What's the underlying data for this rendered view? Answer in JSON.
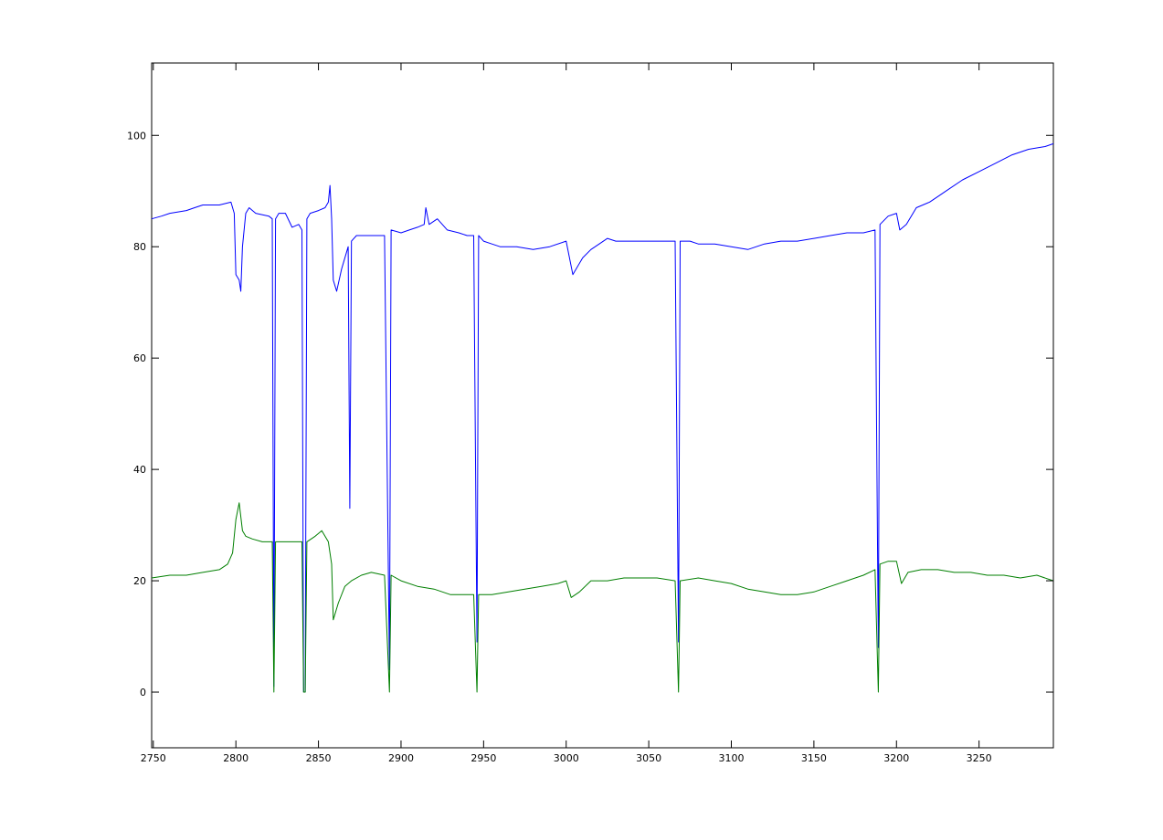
{
  "chart_data": {
    "type": "line",
    "title": "",
    "xlabel": "",
    "ylabel": "",
    "xlim": [
      2749,
      3295
    ],
    "ylim": [
      -10,
      113
    ],
    "xticks": [
      2750,
      2800,
      2850,
      2900,
      2950,
      3000,
      3050,
      3100,
      3150,
      3200,
      3250
    ],
    "yticks": [
      0,
      20,
      40,
      60,
      80,
      100
    ],
    "xtick_labels": [
      "2750",
      "2800",
      "2850",
      "2900",
      "2950",
      "3000",
      "3050",
      "3100",
      "3150",
      "3200",
      "3250"
    ],
    "ytick_labels": [
      "0",
      "20",
      "40",
      "60",
      "80",
      "100"
    ],
    "grid": false,
    "legend": "none",
    "series": [
      {
        "color": "#0000ff",
        "points": [
          [
            2749,
            85
          ],
          [
            2755,
            85.5
          ],
          [
            2760,
            86
          ],
          [
            2770,
            86.5
          ],
          [
            2775,
            87
          ],
          [
            2780,
            87.5
          ],
          [
            2790,
            87.5
          ],
          [
            2797,
            88
          ],
          [
            2799,
            86
          ],
          [
            2800,
            75
          ],
          [
            2802,
            74
          ],
          [
            2803,
            72
          ],
          [
            2804,
            80
          ],
          [
            2806,
            86
          ],
          [
            2808,
            87
          ],
          [
            2812,
            86
          ],
          [
            2820,
            85.5
          ],
          [
            2822,
            85
          ],
          [
            2823,
            1
          ],
          [
            2824,
            85
          ],
          [
            2826,
            86
          ],
          [
            2830,
            86
          ],
          [
            2834,
            83.5
          ],
          [
            2838,
            84
          ],
          [
            2840,
            83
          ],
          [
            2841,
            0
          ],
          [
            2842,
            0
          ],
          [
            2843,
            85
          ],
          [
            2845,
            86
          ],
          [
            2850,
            86.5
          ],
          [
            2854,
            87
          ],
          [
            2856,
            88
          ],
          [
            2857,
            91
          ],
          [
            2858,
            85
          ],
          [
            2859,
            74
          ],
          [
            2861,
            72
          ],
          [
            2864,
            76
          ],
          [
            2867,
            79
          ],
          [
            2868,
            80
          ],
          [
            2869,
            33
          ],
          [
            2870,
            81
          ],
          [
            2873,
            82
          ],
          [
            2880,
            82
          ],
          [
            2886,
            82
          ],
          [
            2890,
            82
          ],
          [
            2893,
            4
          ],
          [
            2894,
            83
          ],
          [
            2900,
            82.5
          ],
          [
            2905,
            83
          ],
          [
            2910,
            83.5
          ],
          [
            2914,
            84
          ],
          [
            2915,
            87
          ],
          [
            2917,
            84
          ],
          [
            2922,
            85
          ],
          [
            2928,
            83
          ],
          [
            2935,
            82.5
          ],
          [
            2940,
            82
          ],
          [
            2944,
            82
          ],
          [
            2946,
            9
          ],
          [
            2947,
            82
          ],
          [
            2950,
            81
          ],
          [
            2955,
            80.5
          ],
          [
            2960,
            80
          ],
          [
            2970,
            80
          ],
          [
            2980,
            79.5
          ],
          [
            2990,
            80
          ],
          [
            3000,
            81
          ],
          [
            3004,
            75
          ],
          [
            3010,
            78
          ],
          [
            3015,
            79.5
          ],
          [
            3020,
            80.5
          ],
          [
            3025,
            81.5
          ],
          [
            3030,
            81
          ],
          [
            3040,
            81
          ],
          [
            3050,
            81
          ],
          [
            3060,
            81
          ],
          [
            3066,
            81
          ],
          [
            3068,
            9
          ],
          [
            3069,
            81
          ],
          [
            3075,
            81
          ],
          [
            3080,
            80.5
          ],
          [
            3090,
            80.5
          ],
          [
            3100,
            80
          ],
          [
            3110,
            79.5
          ],
          [
            3120,
            80.5
          ],
          [
            3130,
            81
          ],
          [
            3140,
            81
          ],
          [
            3150,
            81.5
          ],
          [
            3160,
            82
          ],
          [
            3170,
            82.5
          ],
          [
            3180,
            82.5
          ],
          [
            3187,
            83
          ],
          [
            3189,
            8
          ],
          [
            3190,
            84
          ],
          [
            3195,
            85.5
          ],
          [
            3200,
            86
          ],
          [
            3202,
            83
          ],
          [
            3206,
            84
          ],
          [
            3212,
            87
          ],
          [
            3220,
            88
          ],
          [
            3225,
            89
          ],
          [
            3230,
            90
          ],
          [
            3240,
            92
          ],
          [
            3250,
            93.5
          ],
          [
            3260,
            95
          ],
          [
            3270,
            96.5
          ],
          [
            3280,
            97.5
          ],
          [
            3290,
            98
          ],
          [
            3295,
            98.5
          ]
        ]
      },
      {
        "color": "#007f00",
        "points": [
          [
            2749,
            20.5
          ],
          [
            2760,
            21
          ],
          [
            2770,
            21
          ],
          [
            2780,
            21.5
          ],
          [
            2790,
            22
          ],
          [
            2795,
            23
          ],
          [
            2798,
            25
          ],
          [
            2800,
            31
          ],
          [
            2802,
            34
          ],
          [
            2804,
            29
          ],
          [
            2806,
            28
          ],
          [
            2810,
            27.5
          ],
          [
            2816,
            27
          ],
          [
            2822,
            27
          ],
          [
            2823,
            0
          ],
          [
            2824,
            27
          ],
          [
            2830,
            27
          ],
          [
            2836,
            27
          ],
          [
            2840,
            27
          ],
          [
            2841,
            0
          ],
          [
            2842,
            0
          ],
          [
            2843,
            27
          ],
          [
            2848,
            28
          ],
          [
            2852,
            29
          ],
          [
            2856,
            27
          ],
          [
            2858,
            23
          ],
          [
            2859,
            13
          ],
          [
            2862,
            16
          ],
          [
            2866,
            19
          ],
          [
            2870,
            20
          ],
          [
            2876,
            21
          ],
          [
            2882,
            21.5
          ],
          [
            2890,
            21
          ],
          [
            2893,
            0
          ],
          [
            2894,
            21
          ],
          [
            2900,
            20
          ],
          [
            2910,
            19
          ],
          [
            2920,
            18.5
          ],
          [
            2930,
            17.5
          ],
          [
            2940,
            17.5
          ],
          [
            2944,
            17.5
          ],
          [
            2946,
            0
          ],
          [
            2947,
            17.5
          ],
          [
            2955,
            17.5
          ],
          [
            2965,
            18
          ],
          [
            2975,
            18.5
          ],
          [
            2985,
            19
          ],
          [
            2995,
            19.5
          ],
          [
            3000,
            20
          ],
          [
            3003,
            17
          ],
          [
            3008,
            18
          ],
          [
            3015,
            20
          ],
          [
            3025,
            20
          ],
          [
            3035,
            20.5
          ],
          [
            3045,
            20.5
          ],
          [
            3055,
            20.5
          ],
          [
            3066,
            20
          ],
          [
            3068,
            0
          ],
          [
            3069,
            20
          ],
          [
            3080,
            20.5
          ],
          [
            3090,
            20
          ],
          [
            3100,
            19.5
          ],
          [
            3110,
            18.5
          ],
          [
            3120,
            18
          ],
          [
            3130,
            17.5
          ],
          [
            3140,
            17.5
          ],
          [
            3150,
            18
          ],
          [
            3160,
            19
          ],
          [
            3170,
            20
          ],
          [
            3180,
            21
          ],
          [
            3187,
            22
          ],
          [
            3189,
            0
          ],
          [
            3190,
            23
          ],
          [
            3195,
            23.5
          ],
          [
            3200,
            23.5
          ],
          [
            3203,
            19.5
          ],
          [
            3207,
            21.5
          ],
          [
            3215,
            22
          ],
          [
            3225,
            22
          ],
          [
            3235,
            21.5
          ],
          [
            3245,
            21.5
          ],
          [
            3255,
            21
          ],
          [
            3265,
            21
          ],
          [
            3275,
            20.5
          ],
          [
            3285,
            21
          ],
          [
            3295,
            20
          ]
        ]
      }
    ]
  }
}
